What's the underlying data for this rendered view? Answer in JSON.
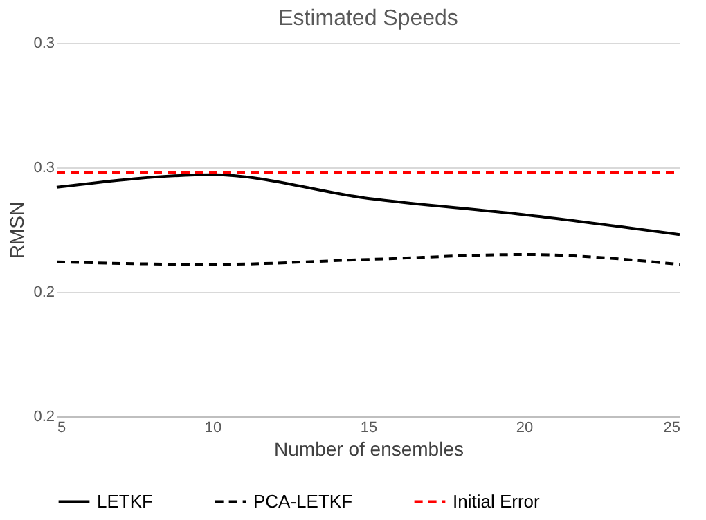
{
  "chart_data": {
    "type": "line",
    "title": "Estimated Speeds",
    "xlabel": "Number of ensembles",
    "ylabel": "RMSN",
    "x": [
      5,
      10,
      15,
      20,
      25
    ],
    "series": [
      {
        "name": "LETKF",
        "color": "#000000",
        "line_style": "solid",
        "values": [
          0.242,
          0.247,
          0.2375,
          0.231,
          0.223
        ]
      },
      {
        "name": "PCA-LETKF",
        "color": "#000000",
        "line_style": "dashed",
        "values": [
          0.212,
          0.211,
          0.213,
          0.215,
          0.211
        ]
      },
      {
        "name": "Initial Error",
        "color": "#ff0000",
        "line_style": "dashed",
        "values": [
          0.248,
          0.248,
          0.248,
          0.248,
          0.248
        ]
      }
    ],
    "xlim": [
      5,
      25
    ],
    "xticks": [
      5,
      10,
      15,
      20,
      25
    ],
    "ylim": [
      0.15,
      0.3
    ],
    "yticks": [
      {
        "value": 0.15,
        "label": "0.2"
      },
      {
        "value": 0.2,
        "label": "0.2"
      },
      {
        "value": 0.25,
        "label": "0.3"
      },
      {
        "value": 0.3,
        "label": "0.3"
      }
    ],
    "grid": "y",
    "legend": "bottom",
    "marker": "none"
  }
}
